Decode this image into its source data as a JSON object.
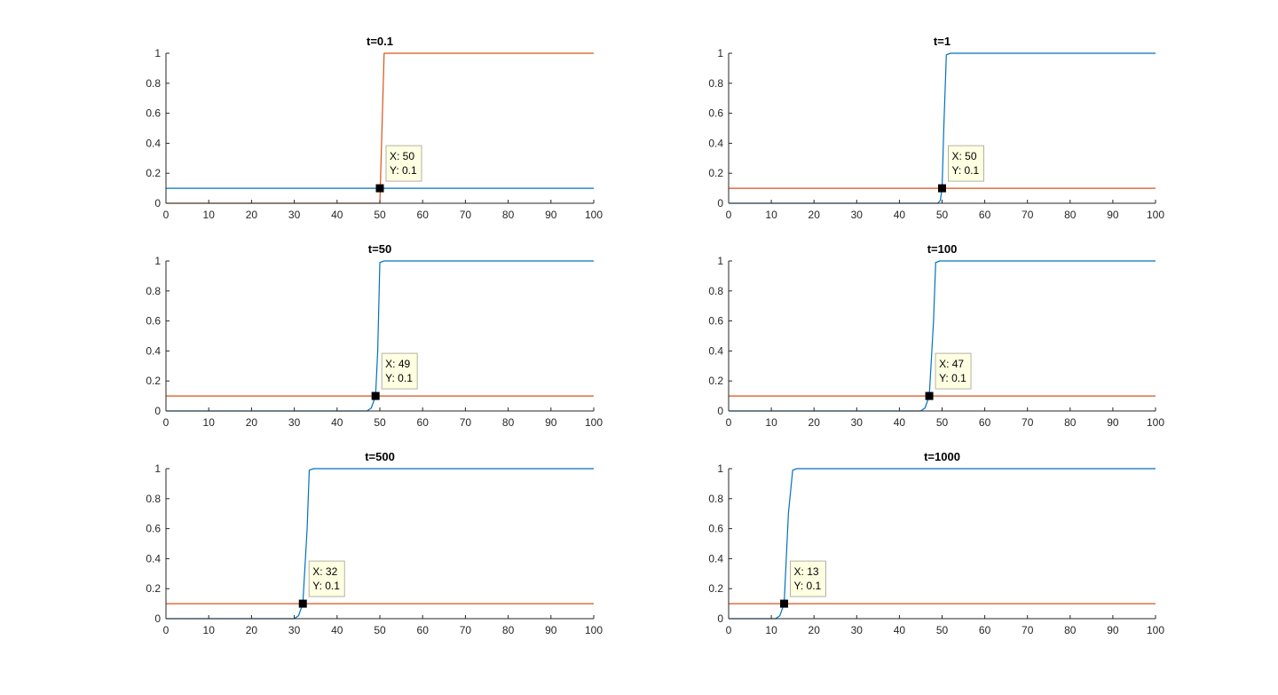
{
  "colors": {
    "blue": "#0072BD",
    "orange": "#D95319",
    "axis": "#262626",
    "tooltip_bg": "#FFFFE1",
    "tooltip_border": "#B2B2A8",
    "marker": "#000000"
  },
  "chart_data": [
    {
      "type": "line",
      "title": "t=0.1",
      "xlim": [
        0,
        100
      ],
      "ylim": [
        0,
        1
      ],
      "xticks": [
        0,
        10,
        20,
        30,
        40,
        50,
        60,
        70,
        80,
        90,
        100
      ],
      "yticks": [
        0,
        0.2,
        0.4,
        0.6,
        0.8,
        1
      ],
      "grid": false,
      "series": [
        {
          "color": "blue",
          "x": [
            0,
            100
          ],
          "y": [
            0.1,
            0.1
          ]
        },
        {
          "color": "orange",
          "x": [
            0,
            50,
            51,
            100
          ],
          "y": [
            0,
            0,
            1,
            1
          ]
        }
      ],
      "datatip": {
        "x": 50,
        "y": 0.1,
        "lines": [
          "X: 50",
          "Y: 0.1"
        ]
      }
    },
    {
      "type": "line",
      "title": "t=1",
      "xlim": [
        0,
        100
      ],
      "ylim": [
        0,
        1
      ],
      "xticks": [
        0,
        10,
        20,
        30,
        40,
        50,
        60,
        70,
        80,
        90,
        100
      ],
      "yticks": [
        0,
        0.2,
        0.4,
        0.6,
        0.8,
        1
      ],
      "grid": false,
      "series": [
        {
          "color": "blue",
          "x": [
            0,
            49,
            49.6,
            50,
            50.4,
            51,
            52,
            100
          ],
          "y": [
            0,
            0,
            0.02,
            0.1,
            0.5,
            0.99,
            1,
            1
          ]
        },
        {
          "color": "orange",
          "x": [
            0,
            100
          ],
          "y": [
            0.1,
            0.1
          ]
        }
      ],
      "datatip": {
        "x": 50,
        "y": 0.1,
        "lines": [
          "X: 50",
          "Y: 0.1"
        ]
      }
    },
    {
      "type": "line",
      "title": "t=50",
      "xlim": [
        0,
        100
      ],
      "ylim": [
        0,
        1
      ],
      "xticks": [
        0,
        10,
        20,
        30,
        40,
        50,
        60,
        70,
        80,
        90,
        100
      ],
      "yticks": [
        0,
        0.2,
        0.4,
        0.6,
        0.8,
        1
      ],
      "grid": false,
      "series": [
        {
          "color": "blue",
          "x": [
            0,
            47,
            48,
            49,
            49.5,
            50,
            51,
            100
          ],
          "y": [
            0,
            0,
            0.02,
            0.1,
            0.4,
            0.99,
            1,
            1
          ]
        },
        {
          "color": "orange",
          "x": [
            0,
            100
          ],
          "y": [
            0.1,
            0.1
          ]
        }
      ],
      "datatip": {
        "x": 49,
        "y": 0.1,
        "lines": [
          "X: 49",
          "Y: 0.1"
        ]
      }
    },
    {
      "type": "line",
      "title": "t=100",
      "xlim": [
        0,
        100
      ],
      "ylim": [
        0,
        1
      ],
      "xticks": [
        0,
        10,
        20,
        30,
        40,
        50,
        60,
        70,
        80,
        90,
        100
      ],
      "yticks": [
        0,
        0.2,
        0.4,
        0.6,
        0.8,
        1
      ],
      "grid": false,
      "series": [
        {
          "color": "blue",
          "x": [
            0,
            45,
            46,
            47,
            48,
            48.5,
            49.5,
            100
          ],
          "y": [
            0,
            0,
            0.02,
            0.1,
            0.6,
            0.99,
            1,
            1
          ]
        },
        {
          "color": "orange",
          "x": [
            0,
            100
          ],
          "y": [
            0.1,
            0.1
          ]
        }
      ],
      "datatip": {
        "x": 47,
        "y": 0.1,
        "lines": [
          "X: 47",
          "Y: 0.1"
        ]
      }
    },
    {
      "type": "line",
      "title": "t=500",
      "xlim": [
        0,
        100
      ],
      "ylim": [
        0,
        1
      ],
      "xticks": [
        0,
        10,
        20,
        30,
        40,
        50,
        60,
        70,
        80,
        90,
        100
      ],
      "yticks": [
        0,
        0.2,
        0.4,
        0.6,
        0.8,
        1
      ],
      "grid": false,
      "series": [
        {
          "color": "blue",
          "x": [
            0,
            30,
            31,
            32,
            33,
            33.5,
            34.5,
            100
          ],
          "y": [
            0,
            0,
            0.02,
            0.1,
            0.6,
            0.99,
            1,
            1
          ]
        },
        {
          "color": "orange",
          "x": [
            0,
            100
          ],
          "y": [
            0.1,
            0.1
          ]
        }
      ],
      "datatip": {
        "x": 32,
        "y": 0.1,
        "lines": [
          "X: 32",
          "Y: 0.1"
        ]
      }
    },
    {
      "type": "line",
      "title": "t=1000",
      "xlim": [
        0,
        100
      ],
      "ylim": [
        0,
        1
      ],
      "xticks": [
        0,
        10,
        20,
        30,
        40,
        50,
        60,
        70,
        80,
        90,
        100
      ],
      "yticks": [
        0,
        0.2,
        0.4,
        0.6,
        0.8,
        1
      ],
      "grid": false,
      "series": [
        {
          "color": "blue",
          "x": [
            0,
            11,
            12,
            13,
            14,
            15,
            16,
            100
          ],
          "y": [
            0,
            0,
            0.02,
            0.1,
            0.7,
            0.99,
            1,
            1
          ]
        },
        {
          "color": "orange",
          "x": [
            0,
            100
          ],
          "y": [
            0.1,
            0.1
          ]
        }
      ],
      "datatip": {
        "x": 13,
        "y": 0.1,
        "lines": [
          "X: 13",
          "Y: 0.1"
        ]
      }
    }
  ]
}
